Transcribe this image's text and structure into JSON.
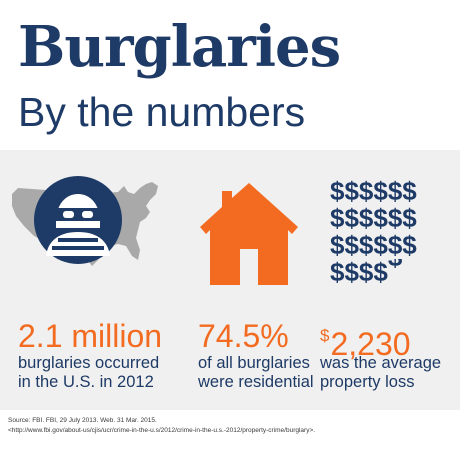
{
  "header": {
    "title": "Burglaries",
    "subtitle": "By the numbers"
  },
  "icons": {
    "map": "us-map-with-masked-burglar-icon",
    "house": "house-icon",
    "money": "dollar-signs-grid-icon"
  },
  "dollar_grid": {
    "rows": [
      "$$$$$$",
      "$$$$$$",
      "$$$$$$",
      "$$$$"
    ],
    "partial_last": "$"
  },
  "stats": [
    {
      "value": "2.1 million",
      "line1": "burglaries occurred",
      "line2": "in the U.S. in 2012"
    },
    {
      "value": "74.5%",
      "line1": "of all burglaries",
      "line2": "were residential"
    },
    {
      "currency": "$",
      "value": "2,230",
      "line1": "was the average",
      "line2": "property loss"
    }
  ],
  "source": {
    "line1": "Source: FBI. FBI, 29 July 2013. Web. 31 Mar. 2015.",
    "line2": "<http://www.fbi.gov/about-us/cjis/ucr/crime-in-the-u.s/2012/crime-in-the-u.s.-2012/property-crime/burglary>."
  },
  "colors": {
    "navy": "#1e3a66",
    "orange": "#f26b21",
    "map_gray": "#a9a9a9",
    "panel_bg": "#f0f0f0"
  }
}
